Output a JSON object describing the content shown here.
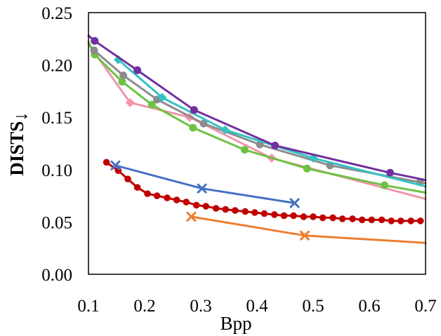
{
  "chart_data": {
    "type": "line",
    "title": "",
    "xlabel": "Bpp",
    "ylabel": "DISTS",
    "ylabel_arrow": "↓",
    "xlim": [
      0.1,
      0.7
    ],
    "ylim": [
      0.0,
      0.25
    ],
    "xticks": [
      0.1,
      0.2,
      0.3,
      0.4,
      0.5,
      0.6,
      0.7
    ],
    "xtick_labels": [
      "0.1",
      "0.2",
      "0.3",
      "0.4",
      "0.5",
      "0.6",
      "0.7"
    ],
    "yticks": [
      0.0,
      0.05,
      0.1,
      0.15,
      0.2,
      0.25
    ],
    "ytick_labels": [
      "0.00",
      "0.05",
      "0.10",
      "0.15",
      "0.20",
      "0.25"
    ],
    "grid": false,
    "legend": "none",
    "series": [
      {
        "name": "purple-circle",
        "color": "#7030A0",
        "marker": "circle",
        "x": [
          0.1,
          0.111,
          0.187,
          0.288,
          0.432,
          0.637,
          0.7
        ],
        "y": [
          0.228,
          0.223,
          0.195,
          0.157,
          0.123,
          0.097,
          0.09
        ],
        "markers": [
          false,
          true,
          true,
          true,
          true,
          true,
          false
        ]
      },
      {
        "name": "teal-diamond",
        "color": "#33C2C2",
        "marker": "diamond",
        "x": [
          0.153,
          0.231,
          0.343,
          0.5,
          0.7
        ],
        "y": [
          0.205,
          0.169,
          0.138,
          0.111,
          0.084
        ],
        "markers": [
          true,
          true,
          true,
          true,
          false
        ]
      },
      {
        "name": "gray-circle",
        "color": "#8C8C8C",
        "marker": "circle",
        "x": [
          0.11,
          0.162,
          0.222,
          0.305,
          0.405,
          0.53,
          0.69,
          0.7
        ],
        "y": [
          0.214,
          0.19,
          0.167,
          0.144,
          0.124,
          0.104,
          0.088,
          0.087
        ],
        "markers": [
          true,
          true,
          true,
          true,
          true,
          true,
          true,
          false
        ]
      },
      {
        "name": "green-circle",
        "color": "#6DC244",
        "marker": "circle",
        "x": [
          0.1,
          0.111,
          0.16,
          0.213,
          0.286,
          0.378,
          0.489,
          0.627,
          0.7
        ],
        "y": [
          0.222,
          0.21,
          0.184,
          0.162,
          0.14,
          0.119,
          0.101,
          0.085,
          0.078
        ],
        "markers": [
          false,
          true,
          true,
          true,
          true,
          true,
          true,
          true,
          false
        ]
      },
      {
        "name": "pink-diamond",
        "color": "#F294AA",
        "marker": "diamond",
        "x": [
          0.1,
          0.174,
          0.28,
          0.426,
          0.7
        ],
        "y": [
          0.22,
          0.164,
          0.15,
          0.111,
          0.072
        ],
        "markers": [
          false,
          true,
          true,
          true,
          false
        ]
      },
      {
        "name": "blue-x",
        "color": "#4472C4",
        "marker": "x",
        "x": [
          0.148,
          0.302,
          0.467
        ],
        "y": [
          0.104,
          0.082,
          0.068
        ],
        "markers": [
          true,
          true,
          true
        ]
      },
      {
        "name": "orange-x",
        "color": "#ED7D31",
        "marker": "x",
        "x": [
          0.283,
          0.485,
          0.7
        ],
        "y": [
          0.055,
          0.037,
          0.03
        ],
        "markers": [
          true,
          true,
          false
        ]
      },
      {
        "name": "red-dense-circle",
        "color": "#C00000",
        "marker": "small-circle",
        "x": [
          0.132,
          0.153,
          0.17,
          0.187,
          0.205,
          0.222,
          0.24,
          0.257,
          0.274,
          0.292,
          0.309,
          0.327,
          0.344,
          0.361,
          0.379,
          0.396,
          0.413,
          0.431,
          0.448,
          0.465,
          0.483,
          0.5,
          0.517,
          0.535,
          0.552,
          0.57,
          0.587,
          0.604,
          0.622,
          0.639,
          0.656,
          0.674,
          0.691
        ],
        "y": [
          0.107,
          0.099,
          0.091,
          0.083,
          0.077,
          0.075,
          0.073,
          0.071,
          0.069,
          0.066,
          0.065,
          0.063,
          0.062,
          0.061,
          0.06,
          0.059,
          0.058,
          0.057,
          0.056,
          0.056,
          0.055,
          0.055,
          0.054,
          0.054,
          0.053,
          0.053,
          0.052,
          0.052,
          0.052,
          0.051,
          0.051,
          0.051,
          0.051
        ],
        "markers": "all"
      }
    ]
  }
}
